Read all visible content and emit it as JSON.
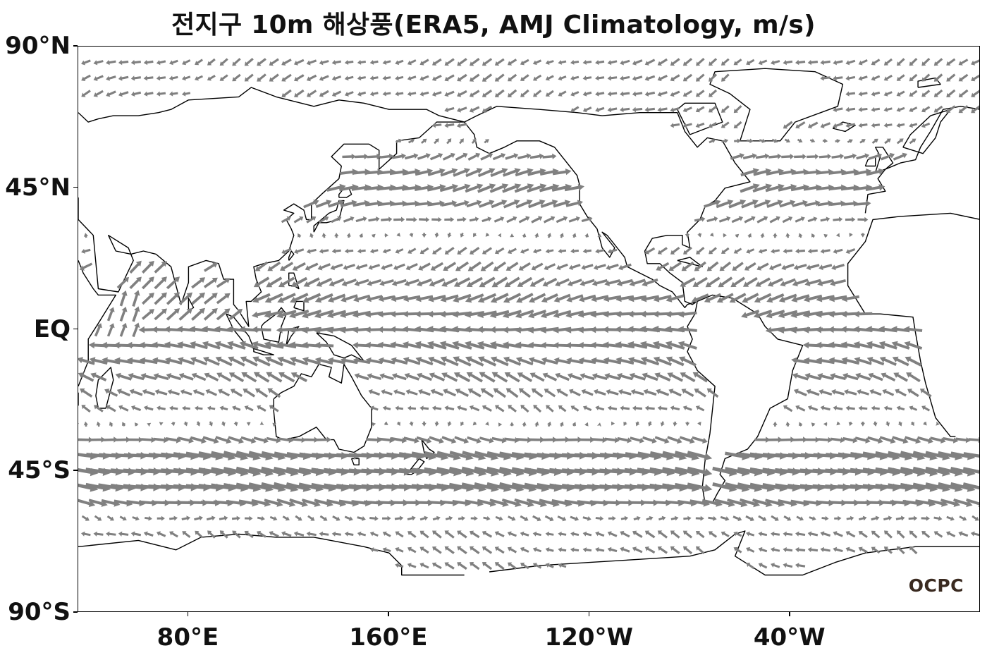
{
  "title": "전지구 10m 해상풍(ERA5, AMJ Climatology, m/s)",
  "map": {
    "projection": "equirectangular",
    "lon_range": [
      36,
      396
    ],
    "lat_range": [
      -90,
      90
    ],
    "arrow_color": "#808080",
    "coastline_color": "#000000"
  },
  "y_ticks": [
    {
      "label": "90°N",
      "lat": 90
    },
    {
      "label": "45°N",
      "lat": 45
    },
    {
      "label": "EQ",
      "lat": 0
    },
    {
      "label": "45°S",
      "lat": -45
    },
    {
      "label": "90°S",
      "lat": -90
    }
  ],
  "x_ticks": [
    {
      "label": "80°E",
      "lon": 80
    },
    {
      "label": "160°E",
      "lon": 160
    },
    {
      "label": "120°W",
      "lon": 240
    },
    {
      "label": "40°W",
      "lon": 320
    }
  ],
  "logo": "OCPC"
}
